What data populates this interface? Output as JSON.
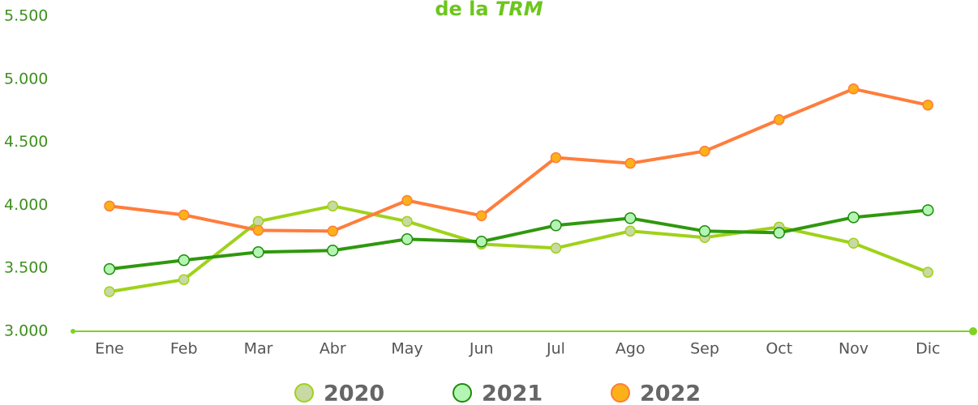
{
  "chart_data": {
    "type": "line",
    "title": "de la",
    "title_emphasis": "TRM",
    "categories": [
      "Ene",
      "Feb",
      "Mar",
      "Abr",
      "May",
      "Jun",
      "Jul",
      "Ago",
      "Sep",
      "Oct",
      "Nov",
      "Dic"
    ],
    "series": [
      {
        "name": "2020",
        "color": "#9fd21a",
        "marker_color": "#c9d9a3",
        "values": [
          3314,
          3410,
          3872,
          3994,
          3872,
          3692,
          3660,
          3795,
          3744,
          3827,
          3699,
          3468
        ]
      },
      {
        "name": "2021",
        "color": "#2f980e",
        "marker_color": "#b3f5b3",
        "values": [
          3494,
          3564,
          3628,
          3641,
          3731,
          3712,
          3840,
          3897,
          3795,
          3782,
          3904,
          3961
        ]
      },
      {
        "name": "2022",
        "color": "#ff7d3c",
        "marker_color": "#fbb117",
        "values": [
          3994,
          3923,
          3801,
          3795,
          4038,
          3917,
          4378,
          4333,
          4429,
          4679,
          4923,
          4795
        ]
      }
    ],
    "ylim": [
      3000,
      5500
    ],
    "yticks": [
      {
        "value": 3000,
        "label": "3.000"
      },
      {
        "value": 3500,
        "label": "3.500"
      },
      {
        "value": 4000,
        "label": "4.000"
      },
      {
        "value": 4500,
        "label": "4.500"
      },
      {
        "value": 5000,
        "label": "5.000"
      },
      {
        "value": 5500,
        "label": "5.500"
      }
    ],
    "grid": false,
    "legend": "bottom"
  }
}
